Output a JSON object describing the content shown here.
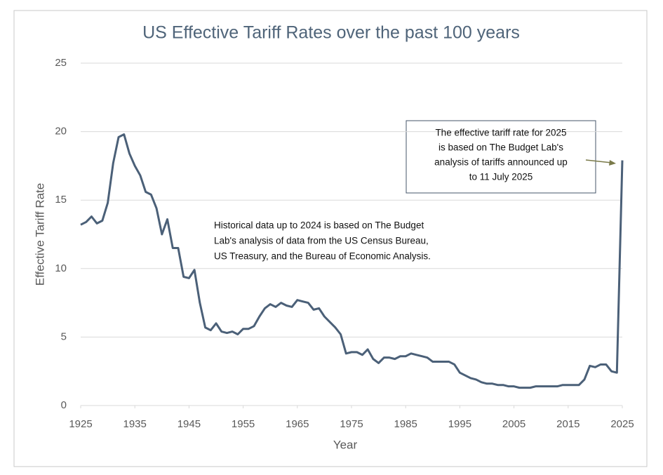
{
  "chart_data": {
    "type": "line",
    "title": "US Effective Tariff Rates over the past 100 years",
    "xlabel": "Year",
    "ylabel": "Effective Tariff Rate",
    "x": [
      1925,
      1926,
      1927,
      1928,
      1929,
      1930,
      1931,
      1932,
      1933,
      1934,
      1935,
      1936,
      1937,
      1938,
      1939,
      1940,
      1941,
      1942,
      1943,
      1944,
      1945,
      1946,
      1947,
      1948,
      1949,
      1950,
      1951,
      1952,
      1953,
      1954,
      1955,
      1956,
      1957,
      1958,
      1959,
      1960,
      1961,
      1962,
      1963,
      1964,
      1965,
      1966,
      1967,
      1968,
      1969,
      1970,
      1971,
      1972,
      1973,
      1974,
      1975,
      1976,
      1977,
      1978,
      1979,
      1980,
      1981,
      1982,
      1983,
      1984,
      1985,
      1986,
      1987,
      1988,
      1989,
      1990,
      1991,
      1992,
      1993,
      1994,
      1995,
      1996,
      1997,
      1998,
      1999,
      2000,
      2001,
      2002,
      2003,
      2004,
      2005,
      2006,
      2007,
      2008,
      2009,
      2010,
      2011,
      2012,
      2013,
      2014,
      2015,
      2016,
      2017,
      2018,
      2019,
      2020,
      2021,
      2022,
      2023,
      2024,
      2025
    ],
    "series": [
      {
        "name": "Effective Tariff Rate",
        "color": "#4b6078",
        "values": [
          13.2,
          13.4,
          13.8,
          13.3,
          13.5,
          14.8,
          17.7,
          19.6,
          19.8,
          18.4,
          17.5,
          16.8,
          15.6,
          15.4,
          14.4,
          12.5,
          13.6,
          11.5,
          11.5,
          9.4,
          9.3,
          9.9,
          7.5,
          5.7,
          5.5,
          6.0,
          5.4,
          5.3,
          5.4,
          5.2,
          5.6,
          5.6,
          5.8,
          6.5,
          7.1,
          7.4,
          7.2,
          7.5,
          7.3,
          7.2,
          7.7,
          7.6,
          7.5,
          7.0,
          7.1,
          6.5,
          6.1,
          5.7,
          5.2,
          3.8,
          3.9,
          3.9,
          3.7,
          4.1,
          3.4,
          3.1,
          3.5,
          3.5,
          3.4,
          3.6,
          3.6,
          3.8,
          3.7,
          3.6,
          3.5,
          3.2,
          3.2,
          3.2,
          3.2,
          3.0,
          2.4,
          2.2,
          2.0,
          1.9,
          1.7,
          1.6,
          1.6,
          1.5,
          1.5,
          1.4,
          1.4,
          1.3,
          1.3,
          1.3,
          1.4,
          1.4,
          1.4,
          1.4,
          1.4,
          1.5,
          1.5,
          1.5,
          1.5,
          1.9,
          2.9,
          2.8,
          3.0,
          3.0,
          2.5,
          2.4,
          17.9
        ]
      }
    ],
    "xlim": [
      1925,
      2025
    ],
    "xticks": [
      1925,
      1935,
      1945,
      1955,
      1965,
      1975,
      1985,
      1995,
      2005,
      2015,
      2025
    ],
    "ylim": [
      0,
      25
    ],
    "yticks": [
      0,
      5,
      10,
      15,
      20,
      25
    ],
    "grid": true,
    "annotations": [
      {
        "lines": [
          "Historical data up to 2024 is based on The Budget",
          "Lab's analysis of data from the US Census Bureau,",
          "US Treasury, and the Bureau of Economic Analysis."
        ]
      },
      {
        "lines": [
          "The effective tariff rate for 2025",
          "is based on The Budget Lab's",
          "analysis of tariffs announced up",
          "to 11 July 2025"
        ]
      }
    ]
  }
}
